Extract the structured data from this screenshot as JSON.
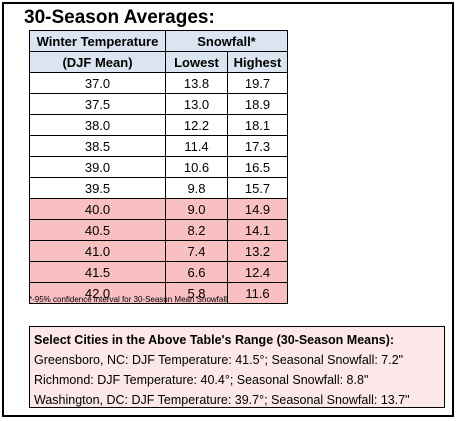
{
  "title": "30-Season Averages:",
  "table": {
    "header_temp_1": "Winter Temperature",
    "header_temp_2": "(DJF Mean)",
    "header_snow": "Snowfall*",
    "header_low": "Lowest",
    "header_high": "Highest",
    "rows": [
      {
        "temp": "37.0",
        "low": "13.8",
        "high": "19.7",
        "shade": "white"
      },
      {
        "temp": "37.5",
        "low": "13.0",
        "high": "18.9",
        "shade": "white"
      },
      {
        "temp": "38.0",
        "low": "12.2",
        "high": "18.1",
        "shade": "white"
      },
      {
        "temp": "38.5",
        "low": "11.4",
        "high": "17.3",
        "shade": "white"
      },
      {
        "temp": "39.0",
        "low": "10.6",
        "high": "16.5",
        "shade": "white"
      },
      {
        "temp": "39.5",
        "low": "9.8",
        "high": "15.7",
        "shade": "white"
      },
      {
        "temp": "40.0",
        "low": "9.0",
        "high": "14.9",
        "shade": "pink"
      },
      {
        "temp": "40.5",
        "low": "8.2",
        "high": "14.1",
        "shade": "pink"
      },
      {
        "temp": "41.0",
        "low": "7.4",
        "high": "13.2",
        "shade": "pink"
      },
      {
        "temp": "41.5",
        "low": "6.6",
        "high": "12.4",
        "shade": "pink"
      },
      {
        "temp": "42.0",
        "low": "5.8",
        "high": "11.6",
        "shade": "pink"
      }
    ]
  },
  "footnote": "*-95% confidence interval for 30-Season Mean Snowfall",
  "cities": {
    "heading": "Select Cities in the Above Table's Range (30-Season Means):",
    "lines": [
      "Greensboro, NC: DJF Temperature: 41.5°; Seasonal Snowfall: 7.2\"",
      "Richmond: DJF Temperature: 40.4°; Seasonal Snowfall: 8.8\"",
      "Washington, DC: DJF Temperature: 39.7°; Seasonal Snowfall: 13.7\""
    ]
  },
  "colors": {
    "header_fill": "#dbe5f1",
    "highlight_fill": "#f8c0c0",
    "cities_fill": "#fce8e8"
  }
}
